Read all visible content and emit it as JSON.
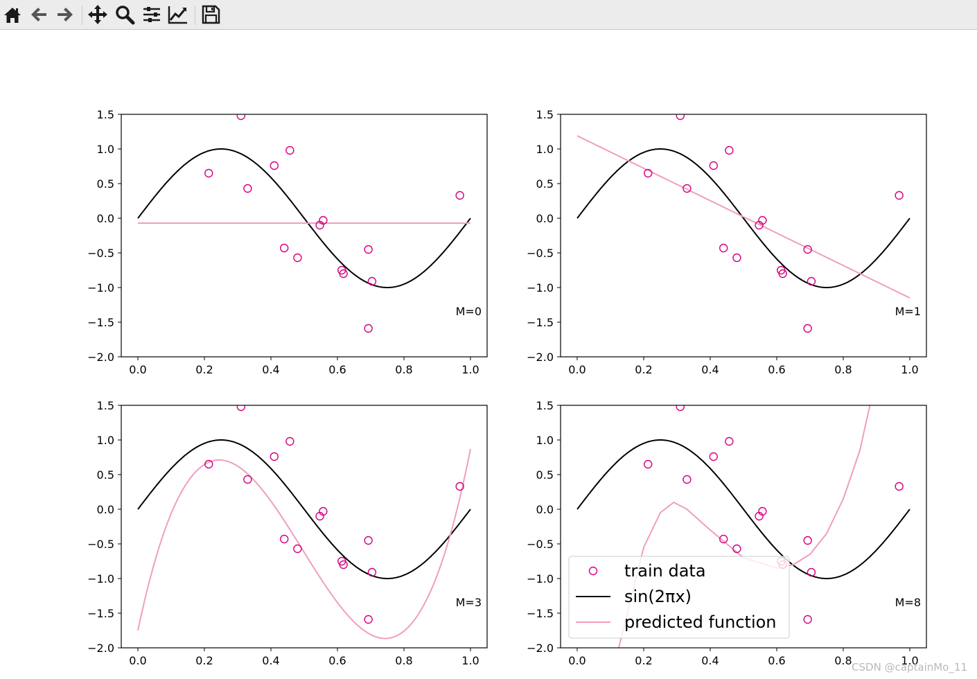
{
  "toolbar": {
    "buttons": [
      {
        "name": "home",
        "icon": "home-icon"
      },
      {
        "name": "back",
        "icon": "arrow-left-icon"
      },
      {
        "name": "forward",
        "icon": "arrow-right-icon"
      },
      {
        "name": "pan",
        "icon": "move-icon"
      },
      {
        "name": "zoom",
        "icon": "magnifier-icon"
      },
      {
        "name": "configure-subplots",
        "icon": "sliders-icon"
      },
      {
        "name": "edit-axes",
        "icon": "line-chart-icon"
      },
      {
        "name": "save",
        "icon": "floppy-disk-icon"
      }
    ]
  },
  "colors": {
    "train": "#d6007f",
    "sine": "#000000",
    "predicted": "#f09dc0"
  },
  "legend": {
    "train_label": "train data",
    "sine_label": "sin(2πx)",
    "predicted_label": "predicted function"
  },
  "watermark": "CSDN @captainMo_11",
  "chart_data": [
    {
      "type": "line+scatter",
      "label": "M=0",
      "xlim": [
        0.0,
        1.0
      ],
      "ylim": [
        -2.0,
        1.5
      ],
      "xticks": [
        "0.0",
        "0.2",
        "0.4",
        "0.6",
        "0.8",
        "1.0"
      ],
      "yticks": [
        "1.5",
        "1.0",
        "0.5",
        "0.0",
        "−0.5",
        "−1.0",
        "−1.5",
        "−2.0"
      ],
      "series": [
        {
          "name": "sin(2πx)",
          "kind": "function",
          "function": "sin(2*pi*x)"
        },
        {
          "name": "predicted function",
          "kind": "polynomial",
          "coefficients": [
            -0.07
          ]
        }
      ]
    },
    {
      "type": "line+scatter",
      "label": "M=1",
      "xlim": [
        0.0,
        1.0
      ],
      "ylim": [
        -2.0,
        1.5
      ],
      "xticks": [
        "0.0",
        "0.2",
        "0.4",
        "0.6",
        "0.8",
        "1.0"
      ],
      "yticks": [
        "1.5",
        "1.0",
        "0.5",
        "0.0",
        "−0.5",
        "−1.0",
        "−1.5",
        "−2.0"
      ],
      "series": [
        {
          "name": "sin(2πx)",
          "kind": "function",
          "function": "sin(2*pi*x)"
        },
        {
          "name": "predicted function",
          "kind": "polynomial",
          "coefficients": [
            1.19,
            -2.34
          ]
        }
      ]
    },
    {
      "type": "line+scatter",
      "label": "M=3",
      "xlim": [
        0.0,
        1.0
      ],
      "ylim": [
        -2.0,
        1.5
      ],
      "xticks": [
        "0.0",
        "0.2",
        "0.4",
        "0.6",
        "0.8",
        "1.0"
      ],
      "yticks": [
        "1.5",
        "1.0",
        "0.5",
        "0.0",
        "−0.5",
        "−1.0",
        "−1.5",
        "−2.0"
      ],
      "series": [
        {
          "name": "sin(2πx)",
          "kind": "function",
          "function": "sin(2*pi*x)"
        },
        {
          "name": "predicted function",
          "kind": "polynomial",
          "coefficients": [
            -1.75,
            22.6,
            -61.4,
            41.42
          ]
        }
      ]
    },
    {
      "type": "line+scatter",
      "label": "M=8",
      "xlim": [
        0.0,
        1.0
      ],
      "ylim": [
        -2.0,
        1.5
      ],
      "xticks": [
        "0.0",
        "0.2",
        "0.4",
        "0.6",
        "0.8",
        "1.0"
      ],
      "yticks": [
        "1.5",
        "1.0",
        "0.5",
        "0.0",
        "−0.5",
        "−1.0",
        "−1.5",
        "−2.0"
      ],
      "series": [
        {
          "name": "sin(2πx)",
          "kind": "function",
          "function": "sin(2*pi*x)"
        },
        {
          "name": "predicted function",
          "kind": "interpolated",
          "points": [
            [
              0.125,
              -2.0
            ],
            [
              0.2,
              -0.55
            ],
            [
              0.25,
              -0.05
            ],
            [
              0.29,
              0.1
            ],
            [
              0.33,
              0.0
            ],
            [
              0.4,
              -0.3
            ],
            [
              0.5,
              -0.7
            ],
            [
              0.6,
              -0.85
            ],
            [
              0.65,
              -0.8
            ],
            [
              0.7,
              -0.65
            ],
            [
              0.75,
              -0.35
            ],
            [
              0.8,
              0.15
            ],
            [
              0.85,
              0.85
            ],
            [
              0.88,
              1.5
            ]
          ]
        },
        {
          "name": "train data",
          "kind": "note",
          "note": "legend shown in this subplot at lower-left"
        }
      ],
      "has_legend": true
    }
  ],
  "train_data": {
    "x": [
      0.213,
      0.31,
      0.33,
      0.41,
      0.44,
      0.457,
      0.48,
      0.547,
      0.557,
      0.613,
      0.618,
      0.693,
      0.693,
      0.704,
      0.968
    ],
    "y": [
      0.65,
      1.48,
      0.43,
      0.76,
      -0.43,
      0.98,
      -0.57,
      -0.1,
      -0.03,
      -0.75,
      -0.8,
      -0.45,
      -1.59,
      -0.91,
      0.33
    ]
  }
}
